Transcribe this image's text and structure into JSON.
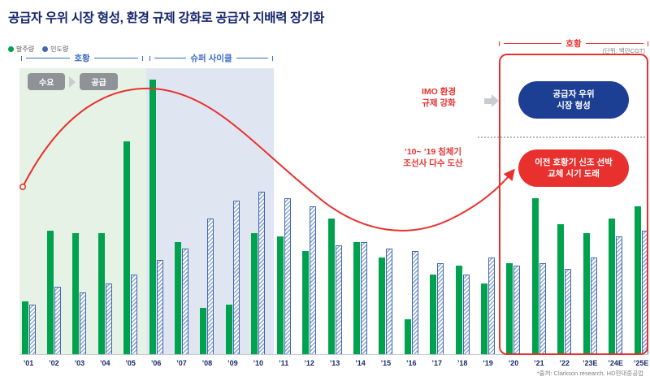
{
  "title": "공급자 우위 시장 형성, 환경 규제 강화로 공급자 지배력 장기화",
  "unit_label": "(단위: 백만CGT)",
  "legend": [
    {
      "label": "발주량",
      "color": "#00A24D"
    },
    {
      "label": "인도량",
      "color": "#4268B0"
    }
  ],
  "periods": {
    "boom_left": "호황",
    "super_cycle": "슈퍼 사이클",
    "boom_right": "호황"
  },
  "flow": {
    "demand": "수요",
    "supply": "공급"
  },
  "annotations": {
    "imo": "IMO 환경\n규제 강화",
    "recession": "’10~ ’19 침체기\n조선사 다수 도산",
    "supplier_box": "공급자 우위\n시장 형성",
    "replacement_box": "이전 호황기 신조 선박\n교체 시기 도래"
  },
  "source": "*출처: Clarkson research, HD현대중공업",
  "colors": {
    "green_bar": "#00A24D",
    "blue_bar": "#4268B0",
    "red_accent": "#E8312E",
    "navy_title": "#15256B",
    "blue_box_bg": "#1C3E93",
    "green_band": "#E7F2E6",
    "blue_band": "#E0E5F2",
    "gray_badge": "#8F9296"
  },
  "chart_data": {
    "type": "bar",
    "categories": [
      "’01",
      "’02",
      "’03",
      "’04",
      "’05",
      "’06",
      "’07",
      "’08",
      "’09",
      "’10",
      "’11",
      "’12",
      "’13",
      "’14",
      "’15",
      "’16",
      "’17",
      "’18",
      "’19",
      "’20",
      "’21",
      "’22",
      "’23E",
      "’24E",
      "’25E"
    ],
    "series": [
      {
        "name": "발주량",
        "color": "#00A24D",
        "values": [
          18,
          42,
          41,
          41,
          72,
          93,
          38,
          16,
          17,
          41,
          40,
          35,
          46,
          38,
          33,
          12,
          27,
          30,
          24,
          31,
          53,
          44,
          41,
          46,
          50
        ]
      },
      {
        "name": "인도량",
        "color": "#4268B0",
        "values": [
          17,
          23,
          21,
          24,
          27,
          32,
          36,
          46,
          52,
          55,
          53,
          50,
          37,
          38,
          36,
          35,
          31,
          27,
          33,
          30,
          31,
          29,
          33,
          40,
          42
        ]
      }
    ],
    "ylabel": "백만CGT",
    "ylim": [
      0,
      100
    ],
    "grid": false,
    "legend_position": "top-left",
    "shaded_periods": [
      {
        "label": "호황",
        "from": "’01",
        "to": "’05",
        "fill": "#E7F2E6"
      },
      {
        "label": "슈퍼 사이클",
        "from": "’06",
        "to": "’10",
        "fill": "#E0E5F2"
      },
      {
        "label": "호황",
        "from": "’20",
        "to": "’25E",
        "outline": "#E8312E"
      }
    ]
  }
}
